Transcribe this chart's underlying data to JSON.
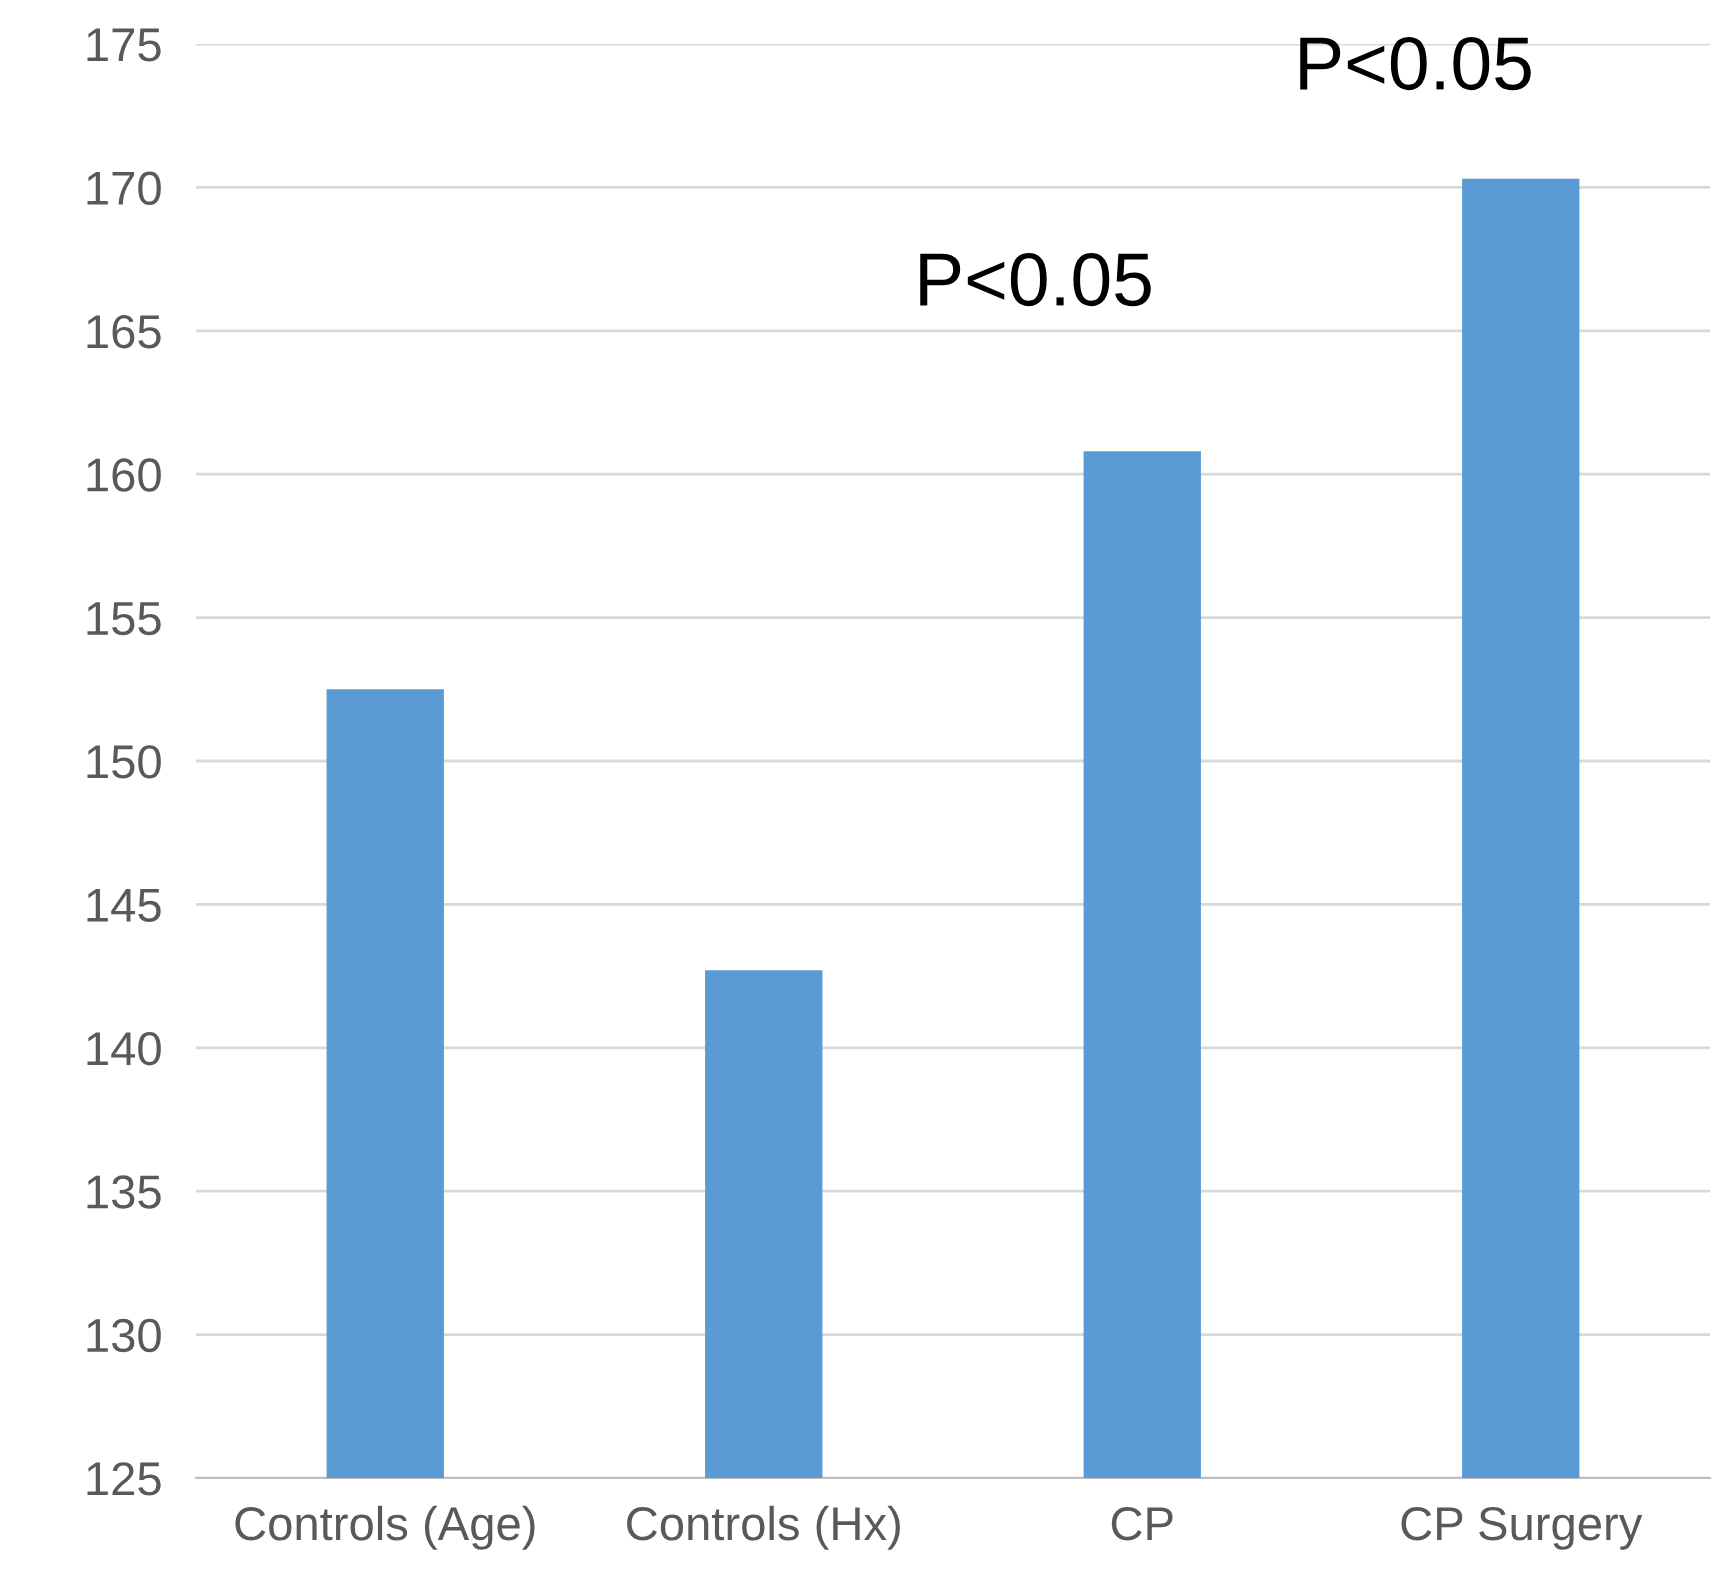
{
  "chart_data": {
    "type": "bar",
    "categories": [
      "Controls (Age)",
      "Controls (Hx)",
      "CP",
      "CP Surgery"
    ],
    "values": [
      152.5,
      142.7,
      160.8,
      170.3
    ],
    "color": "#5b9bd5",
    "ylim": [
      125,
      175
    ],
    "yticks": [
      125,
      130,
      135,
      140,
      145,
      150,
      155,
      160,
      165,
      170,
      175
    ],
    "grid": "y",
    "annotations": [
      "P<0.05",
      "P<0.05"
    ]
  }
}
